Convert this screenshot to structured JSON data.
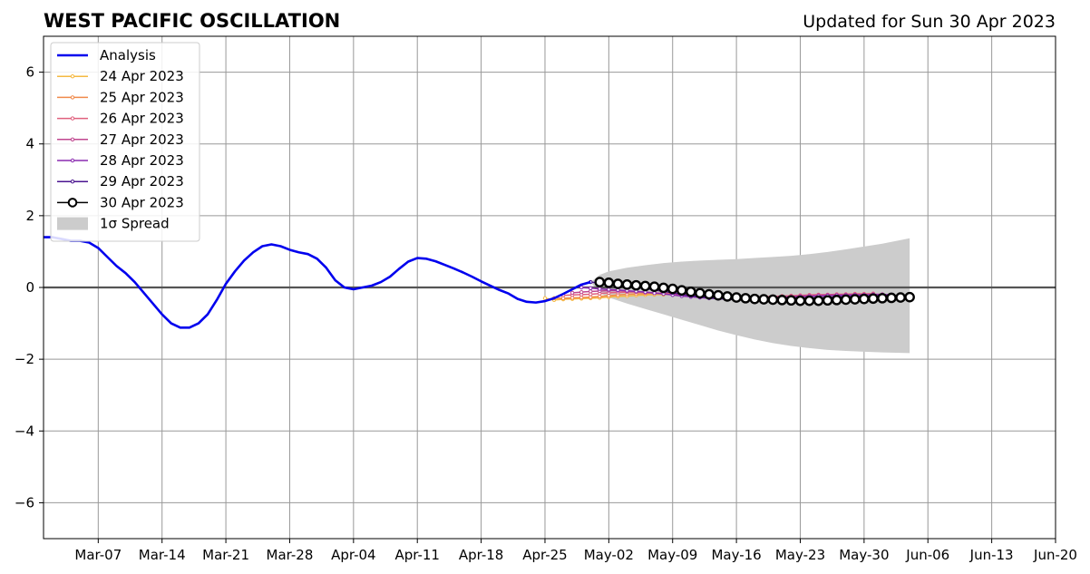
{
  "header": {
    "title": "WEST PACIFIC OSCILLATION",
    "updated": "Updated for Sun 30 Apr 2023"
  },
  "chart_data": {
    "type": "line",
    "title": "WEST PACIFIC OSCILLATION",
    "subtitle": "Updated for Sun 30 Apr 2023",
    "xlabel": "",
    "ylabel": "",
    "grid": true,
    "legend_position": "top-left",
    "xlim": [
      "2023-03-01",
      "2023-06-20"
    ],
    "ylim": [
      -7,
      7
    ],
    "x_ticks": [
      "2023-03-07",
      "2023-03-14",
      "2023-03-21",
      "2023-03-28",
      "2023-04-04",
      "2023-04-11",
      "2023-04-18",
      "2023-04-25",
      "2023-05-02",
      "2023-05-09",
      "2023-05-16",
      "2023-05-23",
      "2023-05-30",
      "2023-06-06",
      "2023-06-13",
      "2023-06-20"
    ],
    "x_tick_labels": [
      "Mar-07",
      "Mar-14",
      "Mar-21",
      "Mar-28",
      "Apr-04",
      "Apr-11",
      "Apr-18",
      "Apr-25",
      "May-02",
      "May-09",
      "May-16",
      "May-23",
      "May-30",
      "Jun-06",
      "Jun-13",
      "Jun-20"
    ],
    "y_ticks": [
      -6,
      -4,
      -2,
      0,
      2,
      4,
      6
    ],
    "y_tick_labels": [
      "−6",
      "−4",
      "−2",
      "0",
      "2",
      "4",
      "6"
    ],
    "colors": {
      "analysis": "#0000ee",
      "spread": "#cccccc",
      "apr24": "#f5b942",
      "apr25": "#f08a4b",
      "apr26": "#e0607e",
      "apr27": "#c0468f",
      "apr28": "#8a2ab0",
      "apr29": "#4b1590",
      "apr30": "#000000",
      "grid": "#999999",
      "zero_line": "#555555"
    },
    "analysis": {
      "name": "Analysis",
      "x": [
        "2023-03-01",
        "2023-03-02",
        "2023-03-03",
        "2023-03-04",
        "2023-03-05",
        "2023-03-06",
        "2023-03-07",
        "2023-03-08",
        "2023-03-09",
        "2023-03-10",
        "2023-03-11",
        "2023-03-12",
        "2023-03-13",
        "2023-03-14",
        "2023-03-15",
        "2023-03-16",
        "2023-03-17",
        "2023-03-18",
        "2023-03-19",
        "2023-03-20",
        "2023-03-21",
        "2023-03-22",
        "2023-03-23",
        "2023-03-24",
        "2023-03-25",
        "2023-03-26",
        "2023-03-27",
        "2023-03-28",
        "2023-03-29",
        "2023-03-30",
        "2023-03-31",
        "2023-04-01",
        "2023-04-02",
        "2023-04-03",
        "2023-04-04",
        "2023-04-05",
        "2023-04-06",
        "2023-04-07",
        "2023-04-08",
        "2023-04-09",
        "2023-04-10",
        "2023-04-11",
        "2023-04-12",
        "2023-04-13",
        "2023-04-14",
        "2023-04-15",
        "2023-04-16",
        "2023-04-17",
        "2023-04-18",
        "2023-04-19",
        "2023-04-20",
        "2023-04-21",
        "2023-04-22",
        "2023-04-23",
        "2023-04-24",
        "2023-04-25",
        "2023-04-26",
        "2023-04-27",
        "2023-04-28",
        "2023-04-29",
        "2023-04-30"
      ],
      "y": [
        1.4,
        1.4,
        1.35,
        1.3,
        1.3,
        1.25,
        1.1,
        0.85,
        0.6,
        0.4,
        0.15,
        -0.15,
        -0.45,
        -0.75,
        -1.0,
        -1.12,
        -1.12,
        -1.0,
        -0.75,
        -0.35,
        0.1,
        0.45,
        0.75,
        0.98,
        1.15,
        1.2,
        1.15,
        1.05,
        0.98,
        0.93,
        0.8,
        0.55,
        0.2,
        0.0,
        -0.05,
        0.0,
        0.05,
        0.15,
        0.3,
        0.52,
        0.72,
        0.82,
        0.8,
        0.73,
        0.63,
        0.53,
        0.42,
        0.3,
        0.17,
        0.05,
        -0.07,
        -0.17,
        -0.32,
        -0.4,
        -0.42,
        -0.38,
        -0.3,
        -0.18,
        -0.05,
        0.08,
        0.15
      ]
    },
    "spread": {
      "name": "1σ Spread",
      "x": [
        "2023-04-30",
        "2023-05-01",
        "2023-05-02",
        "2023-05-04",
        "2023-05-06",
        "2023-05-08",
        "2023-05-10",
        "2023-05-12",
        "2023-05-14",
        "2023-05-16",
        "2023-05-18",
        "2023-05-20",
        "2023-05-22",
        "2023-05-24",
        "2023-05-26",
        "2023-05-28",
        "2023-05-30",
        "2023-06-01",
        "2023-06-04"
      ],
      "upper": [
        0.15,
        0.35,
        0.45,
        0.55,
        0.62,
        0.68,
        0.72,
        0.75,
        0.77,
        0.79,
        0.82,
        0.85,
        0.88,
        0.93,
        0.99,
        1.06,
        1.14,
        1.22,
        1.37
      ],
      "lower": [
        0.15,
        -0.15,
        -0.28,
        -0.45,
        -0.6,
        -0.75,
        -0.9,
        -1.05,
        -1.2,
        -1.33,
        -1.45,
        -1.55,
        -1.63,
        -1.69,
        -1.74,
        -1.77,
        -1.79,
        -1.81,
        -1.83
      ]
    },
    "series": [
      {
        "name": "24 Apr 2023",
        "x_start": "2023-04-25",
        "values": [
          -0.3,
          -0.35,
          -0.33,
          -0.32,
          -0.31,
          -0.3,
          -0.29,
          -0.27,
          -0.25,
          -0.24,
          -0.22,
          -0.21,
          -0.2,
          -0.2,
          -0.19,
          -0.19,
          -0.2,
          -0.21,
          -0.22,
          -0.23,
          -0.24,
          -0.25,
          -0.26,
          -0.27,
          -0.28,
          -0.28,
          -0.28,
          -0.27,
          -0.26,
          -0.25,
          -0.24,
          -0.23,
          -0.22,
          -0.21,
          -0.2
        ]
      },
      {
        "name": "25 Apr 2023",
        "x_start": "2023-04-26",
        "values": [
          -0.3,
          -0.3,
          -0.29,
          -0.28,
          -0.27,
          -0.25,
          -0.23,
          -0.21,
          -0.19,
          -0.18,
          -0.17,
          -0.16,
          -0.16,
          -0.17,
          -0.18,
          -0.19,
          -0.21,
          -0.23,
          -0.25,
          -0.26,
          -0.27,
          -0.28,
          -0.28,
          -0.28,
          -0.27,
          -0.26,
          -0.25,
          -0.24,
          -0.23,
          -0.22,
          -0.21,
          -0.2,
          -0.19,
          -0.18,
          -0.18
        ]
      },
      {
        "name": "26 Apr 2023",
        "x_start": "2023-04-27",
        "values": [
          -0.22,
          -0.21,
          -0.2,
          -0.19,
          -0.17,
          -0.15,
          -0.14,
          -0.13,
          -0.13,
          -0.14,
          -0.15,
          -0.17,
          -0.19,
          -0.21,
          -0.23,
          -0.25,
          -0.26,
          -0.27,
          -0.28,
          -0.28,
          -0.28,
          -0.27,
          -0.26,
          -0.25,
          -0.24,
          -0.23,
          -0.22,
          -0.21,
          -0.2,
          -0.2,
          -0.19,
          -0.19,
          -0.18,
          -0.18,
          -0.17
        ]
      },
      {
        "name": "27 Apr 2023",
        "x_start": "2023-04-28",
        "values": [
          -0.15,
          -0.13,
          -0.11,
          -0.1,
          -0.09,
          -0.09,
          -0.1,
          -0.11,
          -0.13,
          -0.15,
          -0.17,
          -0.2,
          -0.22,
          -0.25,
          -0.27,
          -0.28,
          -0.29,
          -0.3,
          -0.3,
          -0.3,
          -0.29,
          -0.28,
          -0.27,
          -0.26,
          -0.25,
          -0.24,
          -0.23,
          -0.22,
          -0.21,
          -0.21,
          -0.2,
          -0.2,
          -0.2,
          -0.19,
          -0.19
        ]
      },
      {
        "name": "28 Apr 2023",
        "x_start": "2023-04-29",
        "values": [
          0.0,
          -0.02,
          -0.04,
          -0.06,
          -0.07,
          -0.09,
          -0.11,
          -0.13,
          -0.16,
          -0.18,
          -0.21,
          -0.24,
          -0.26,
          -0.28,
          -0.3,
          -0.31,
          -0.32,
          -0.32,
          -0.32,
          -0.31,
          -0.3,
          -0.29,
          -0.28,
          -0.27,
          -0.26,
          -0.25,
          -0.24,
          -0.23,
          -0.22,
          -0.22,
          -0.21,
          -0.21,
          -0.2,
          -0.2,
          -0.2
        ]
      },
      {
        "name": "29 Apr 2023",
        "x_start": "2023-04-30",
        "values": [
          0.15,
          0.12,
          0.09,
          0.06,
          0.03,
          0.0,
          -0.03,
          -0.07,
          -0.11,
          -0.15,
          -0.19,
          -0.23,
          -0.26,
          -0.29,
          -0.31,
          -0.33,
          -0.34,
          -0.35,
          -0.35,
          -0.35,
          -0.34,
          -0.33,
          -0.32,
          -0.31,
          -0.3,
          -0.29,
          -0.28,
          -0.27,
          -0.26,
          -0.25,
          -0.25,
          -0.24,
          -0.24,
          -0.23,
          -0.23
        ]
      },
      {
        "name": "30 Apr 2023",
        "x_start": "2023-05-01",
        "values": [
          0.15,
          0.13,
          0.1,
          0.08,
          0.06,
          0.04,
          0.02,
          -0.01,
          -0.04,
          -0.08,
          -0.12,
          -0.16,
          -0.19,
          -0.22,
          -0.25,
          -0.28,
          -0.3,
          -0.32,
          -0.33,
          -0.34,
          -0.35,
          -0.36,
          -0.37,
          -0.37,
          -0.37,
          -0.36,
          -0.35,
          -0.34,
          -0.33,
          -0.32,
          -0.31,
          -0.3,
          -0.29,
          -0.28,
          -0.27
        ]
      }
    ]
  }
}
